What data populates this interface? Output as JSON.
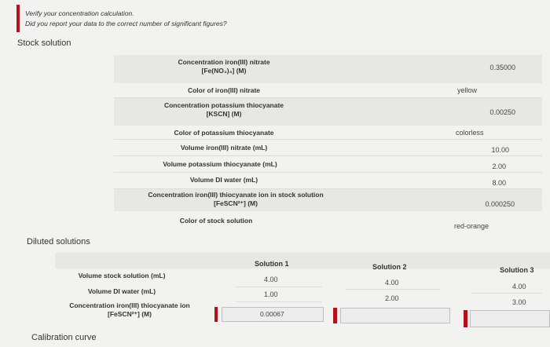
{
  "alert": {
    "line1": "Verify your concentration calculation.",
    "line2": "Did you report your data to the correct number of significant figures?"
  },
  "stock": {
    "title": "Stock solution",
    "rows": [
      {
        "label1": "Concentration iron(III) nitrate",
        "label2": "[Fe(NO₃)₃] (M)",
        "value": "0.35000",
        "kind": "num"
      },
      {
        "label1": "Color of iron(III) nitrate",
        "label2": "",
        "value": "yellow",
        "kind": "text"
      },
      {
        "label1": "Concentration potassium thiocyanate",
        "label2": "[KSCN] (M)",
        "value": "0.00250",
        "kind": "num"
      },
      {
        "label1": "Color of potassium thiocyanate",
        "label2": "",
        "value": "colorless",
        "kind": "text"
      },
      {
        "label1": "Volume iron(III) nitrate (mL)",
        "label2": "",
        "value": "10.00",
        "kind": "num"
      },
      {
        "label1": "Volume potassium thiocyanate (mL)",
        "label2": "",
        "value": "2.00",
        "kind": "num"
      },
      {
        "label1": "Volume DI water (mL)",
        "label2": "",
        "value": "8.00",
        "kind": "num"
      },
      {
        "label1": "Concentration iron(III) thiocyanate ion in stock solution",
        "label2": "[FeSCN²⁺] (M)",
        "value": "0.000250",
        "kind": "num"
      },
      {
        "label1": "Color of stock solution",
        "label2": "",
        "value": "red-orange",
        "kind": "text"
      }
    ]
  },
  "diluted": {
    "title": "Diluted solutions",
    "headers": [
      "Solution 1",
      "Solution 2",
      "Solution 3"
    ],
    "row_labels": [
      {
        "l1": "Volume stock solution (mL)",
        "l2": ""
      },
      {
        "l1": "Volume DI water (mL)",
        "l2": ""
      },
      {
        "l1": "Concentration iron(III) thiocyanate ion",
        "l2": "[FeSCN²⁺] (M)"
      }
    ],
    "sol1": [
      "4.00",
      "1.00",
      "0.00067"
    ],
    "sol2": [
      "4.00",
      "2.00",
      ""
    ],
    "sol3": [
      "4.00",
      "3.00",
      ""
    ]
  },
  "calibration": {
    "title": "Calibration curve"
  },
  "colors": {
    "accent_red": "#b3121b"
  }
}
